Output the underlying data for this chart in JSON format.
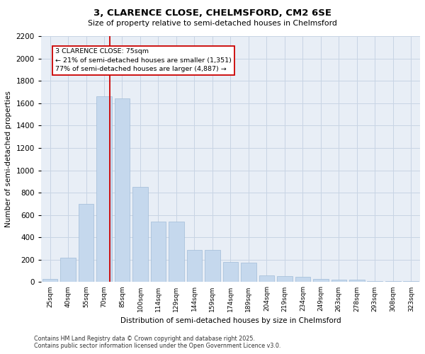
{
  "title": "3, CLARENCE CLOSE, CHELMSFORD, CM2 6SE",
  "subtitle": "Size of property relative to semi-detached houses in Chelmsford",
  "xlabel": "Distribution of semi-detached houses by size in Chelmsford",
  "ylabel": "Number of semi-detached properties",
  "categories": [
    "25sqm",
    "40sqm",
    "55sqm",
    "70sqm",
    "85sqm",
    "100sqm",
    "114sqm",
    "129sqm",
    "144sqm",
    "159sqm",
    "174sqm",
    "189sqm",
    "204sqm",
    "219sqm",
    "234sqm",
    "249sqm",
    "263sqm",
    "278sqm",
    "293sqm",
    "308sqm",
    "323sqm"
  ],
  "values": [
    30,
    220,
    700,
    1660,
    1640,
    850,
    540,
    540,
    290,
    290,
    180,
    175,
    60,
    55,
    50,
    30,
    25,
    20,
    10,
    10,
    10
  ],
  "bar_color": "#c5d8ed",
  "bar_edge_color": "#a0bcd8",
  "grid_color": "#c8d4e4",
  "background_color": "#e8eef6",
  "property_label": "3 CLARENCE CLOSE: 75sqm",
  "smaller_pct": "21%",
  "smaller_count": "1,351",
  "larger_pct": "77%",
  "larger_count": "4,887",
  "red_line_color": "#cc0000",
  "annotation_box_color": "#cc0000",
  "ylim": [
    0,
    2200
  ],
  "yticks": [
    0,
    200,
    400,
    600,
    800,
    1000,
    1200,
    1400,
    1600,
    1800,
    2000,
    2200
  ],
  "footnote1": "Contains HM Land Registry data © Crown copyright and database right 2025.",
  "footnote2": "Contains public sector information licensed under the Open Government Licence v3.0.",
  "fig_width": 6.0,
  "fig_height": 5.0,
  "dpi": 100
}
